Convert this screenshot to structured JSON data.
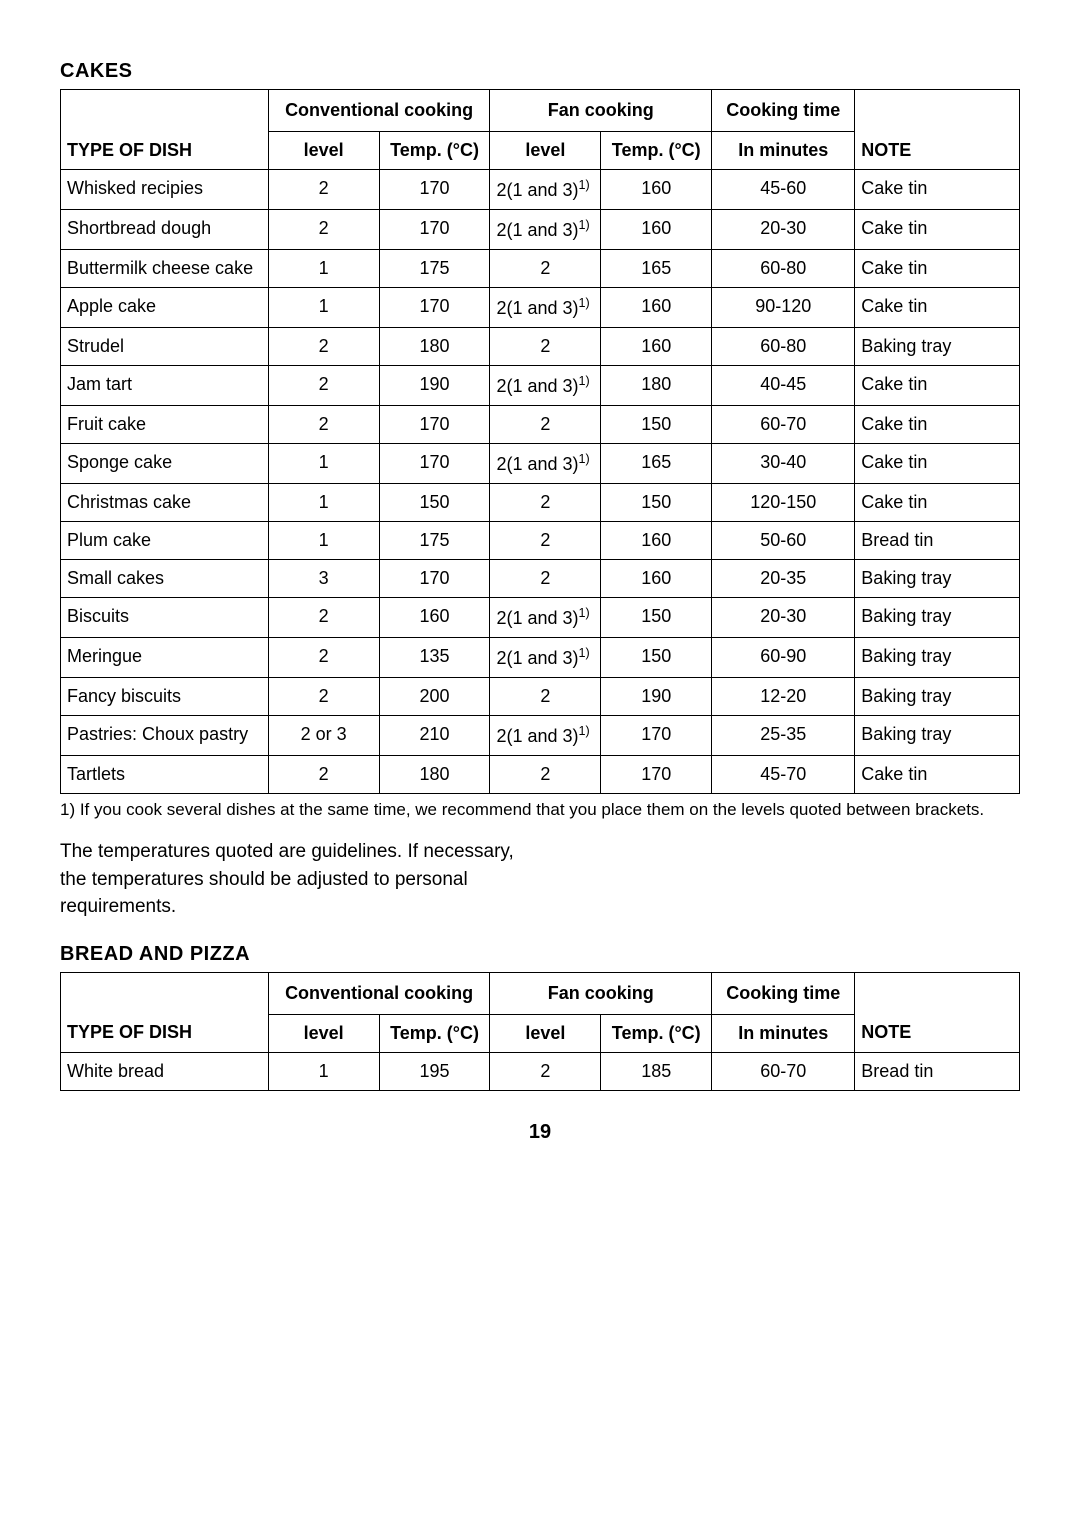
{
  "page_number": "19",
  "cakes": {
    "section_title": "CAKES",
    "headers": {
      "conventional": "Conventional cooking",
      "fan": "Fan cooking",
      "cook_time": "Cooking time",
      "type_of_dish": "TYPE OF DISH",
      "level": "level",
      "temp": "Temp. (°C)",
      "in_minutes": "In minutes",
      "note": "NOTE"
    },
    "rows": [
      {
        "dish": "Whisked recipies",
        "conv_level": "2",
        "conv_temp": "170",
        "fan_level": "2(1 and 3)",
        "fan_sup": "1)",
        "fan_temp": "160",
        "time": "45-60",
        "note": "Cake tin"
      },
      {
        "dish": "Shortbread dough",
        "conv_level": "2",
        "conv_temp": "170",
        "fan_level": "2(1 and 3)",
        "fan_sup": "1)",
        "fan_temp": "160",
        "time": "20-30",
        "note": "Cake tin"
      },
      {
        "dish": "Buttermilk cheese cake",
        "conv_level": "1",
        "conv_temp": "175",
        "fan_level": "2",
        "fan_sup": "",
        "fan_temp": "165",
        "time": "60-80",
        "note": "Cake tin"
      },
      {
        "dish": "Apple cake",
        "conv_level": "1",
        "conv_temp": "170",
        "fan_level": "2(1 and 3)",
        "fan_sup": "1)",
        "fan_temp": "160",
        "time": "90-120",
        "note": "Cake tin"
      },
      {
        "dish": "Strudel",
        "conv_level": "2",
        "conv_temp": "180",
        "fan_level": "2",
        "fan_sup": "",
        "fan_temp": "160",
        "time": "60-80",
        "note": "Baking tray"
      },
      {
        "dish": "Jam tart",
        "conv_level": "2",
        "conv_temp": "190",
        "fan_level": "2(1 and 3)",
        "fan_sup": "1)",
        "fan_temp": "180",
        "time": "40-45",
        "note": "Cake tin"
      },
      {
        "dish": "Fruit cake",
        "conv_level": "2",
        "conv_temp": "170",
        "fan_level": "2",
        "fan_sup": "",
        "fan_temp": "150",
        "time": "60-70",
        "note": "Cake tin"
      },
      {
        "dish": "Sponge cake",
        "conv_level": "1",
        "conv_temp": "170",
        "fan_level": "2(1 and 3)",
        "fan_sup": "1)",
        "fan_temp": "165",
        "time": "30-40",
        "note": "Cake tin"
      },
      {
        "dish": "Christmas cake",
        "conv_level": "1",
        "conv_temp": "150",
        "fan_level": "2",
        "fan_sup": "",
        "fan_temp": "150",
        "time": "120-150",
        "note": "Cake tin"
      },
      {
        "dish": "Plum cake",
        "conv_level": "1",
        "conv_temp": "175",
        "fan_level": "2",
        "fan_sup": "",
        "fan_temp": "160",
        "time": "50-60",
        "note": "Bread tin"
      },
      {
        "dish": "Small cakes",
        "conv_level": "3",
        "conv_temp": "170",
        "fan_level": "2",
        "fan_sup": "",
        "fan_temp": "160",
        "time": "20-35",
        "note": "Baking tray"
      },
      {
        "dish": "Biscuits",
        "conv_level": "2",
        "conv_temp": "160",
        "fan_level": "2(1 and 3)",
        "fan_sup": "1)",
        "fan_temp": "150",
        "time": "20-30",
        "note": "Baking tray"
      },
      {
        "dish": "Meringue",
        "conv_level": "2",
        "conv_temp": "135",
        "fan_level": "2(1 and 3)",
        "fan_sup": "1)",
        "fan_temp": "150",
        "time": "60-90",
        "note": "Baking tray"
      },
      {
        "dish": "Fancy biscuits",
        "conv_level": "2",
        "conv_temp": "200",
        "fan_level": "2",
        "fan_sup": "",
        "fan_temp": "190",
        "time": "12-20",
        "note": "Baking tray"
      },
      {
        "dish": "Pastries: Choux pastry",
        "conv_level": "2 or 3",
        "conv_temp": "210",
        "fan_level": "2(1 and 3)",
        "fan_sup": "1)",
        "fan_temp": "170",
        "time": "25-35",
        "note": "Baking tray"
      },
      {
        "dish": "Tartlets",
        "conv_level": "2",
        "conv_temp": "180",
        "fan_level": "2",
        "fan_sup": "",
        "fan_temp": "170",
        "time": "45-70",
        "note": "Cake tin"
      }
    ],
    "footnote": "1) If you cook several dishes at the same time, we recommend that you place them on the levels quoted between brackets.",
    "body_text": "The temperatures quoted are guidelines. If necessary, the temperatures should be adjusted to personal requirements."
  },
  "bread_pizza": {
    "section_title": "BREAD AND PIZZA",
    "headers": {
      "conventional": "Conventional cooking",
      "fan": "Fan cooking",
      "cook_time": "Cooking time",
      "type_of_dish": "TYPE OF DISH",
      "level": "level",
      "temp": "Temp. (°C)",
      "in_minutes": "In minutes",
      "note": "NOTE"
    },
    "rows": [
      {
        "dish": "White bread",
        "conv_level": "1",
        "conv_temp": "195",
        "fan_level": "2",
        "fan_sup": "",
        "fan_temp": "185",
        "time": "60-70",
        "note": "Bread tin"
      }
    ]
  }
}
